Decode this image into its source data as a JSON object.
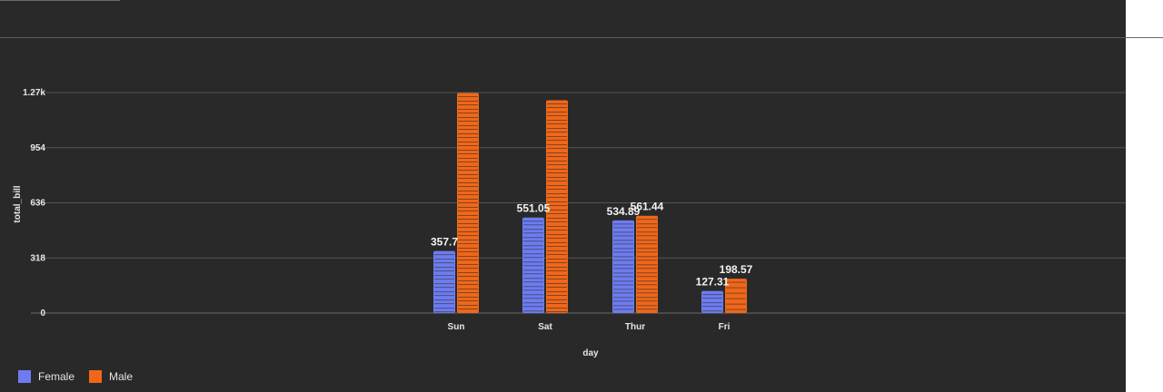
{
  "chart_data": {
    "type": "bar",
    "categories": [
      "Sun",
      "Sat",
      "Thur",
      "Fri"
    ],
    "series": [
      {
        "name": "Female",
        "color": "#6e7cf0",
        "values": [
          357.7,
          551.05,
          534.89,
          127.31
        ]
      },
      {
        "name": "Male",
        "color": "#f0671a",
        "values": [
          1269.46,
          1227.35,
          561.44,
          198.57
        ]
      }
    ],
    "xlabel": "day",
    "ylabel": "total_bill",
    "yticks": [
      0,
      318,
      636,
      954,
      1272
    ],
    "ytick_labels": [
      "0",
      "318",
      "636",
      "954",
      "1.27k"
    ],
    "ylim": [
      0,
      1340
    ],
    "data_labels": {
      "Female": [
        "357.7",
        "551.05",
        "534.89",
        "127.31"
      ],
      "Male": [
        "",
        "",
        "561.44",
        "198.57"
      ]
    },
    "grid": true,
    "legend_position": "bottom-left"
  }
}
